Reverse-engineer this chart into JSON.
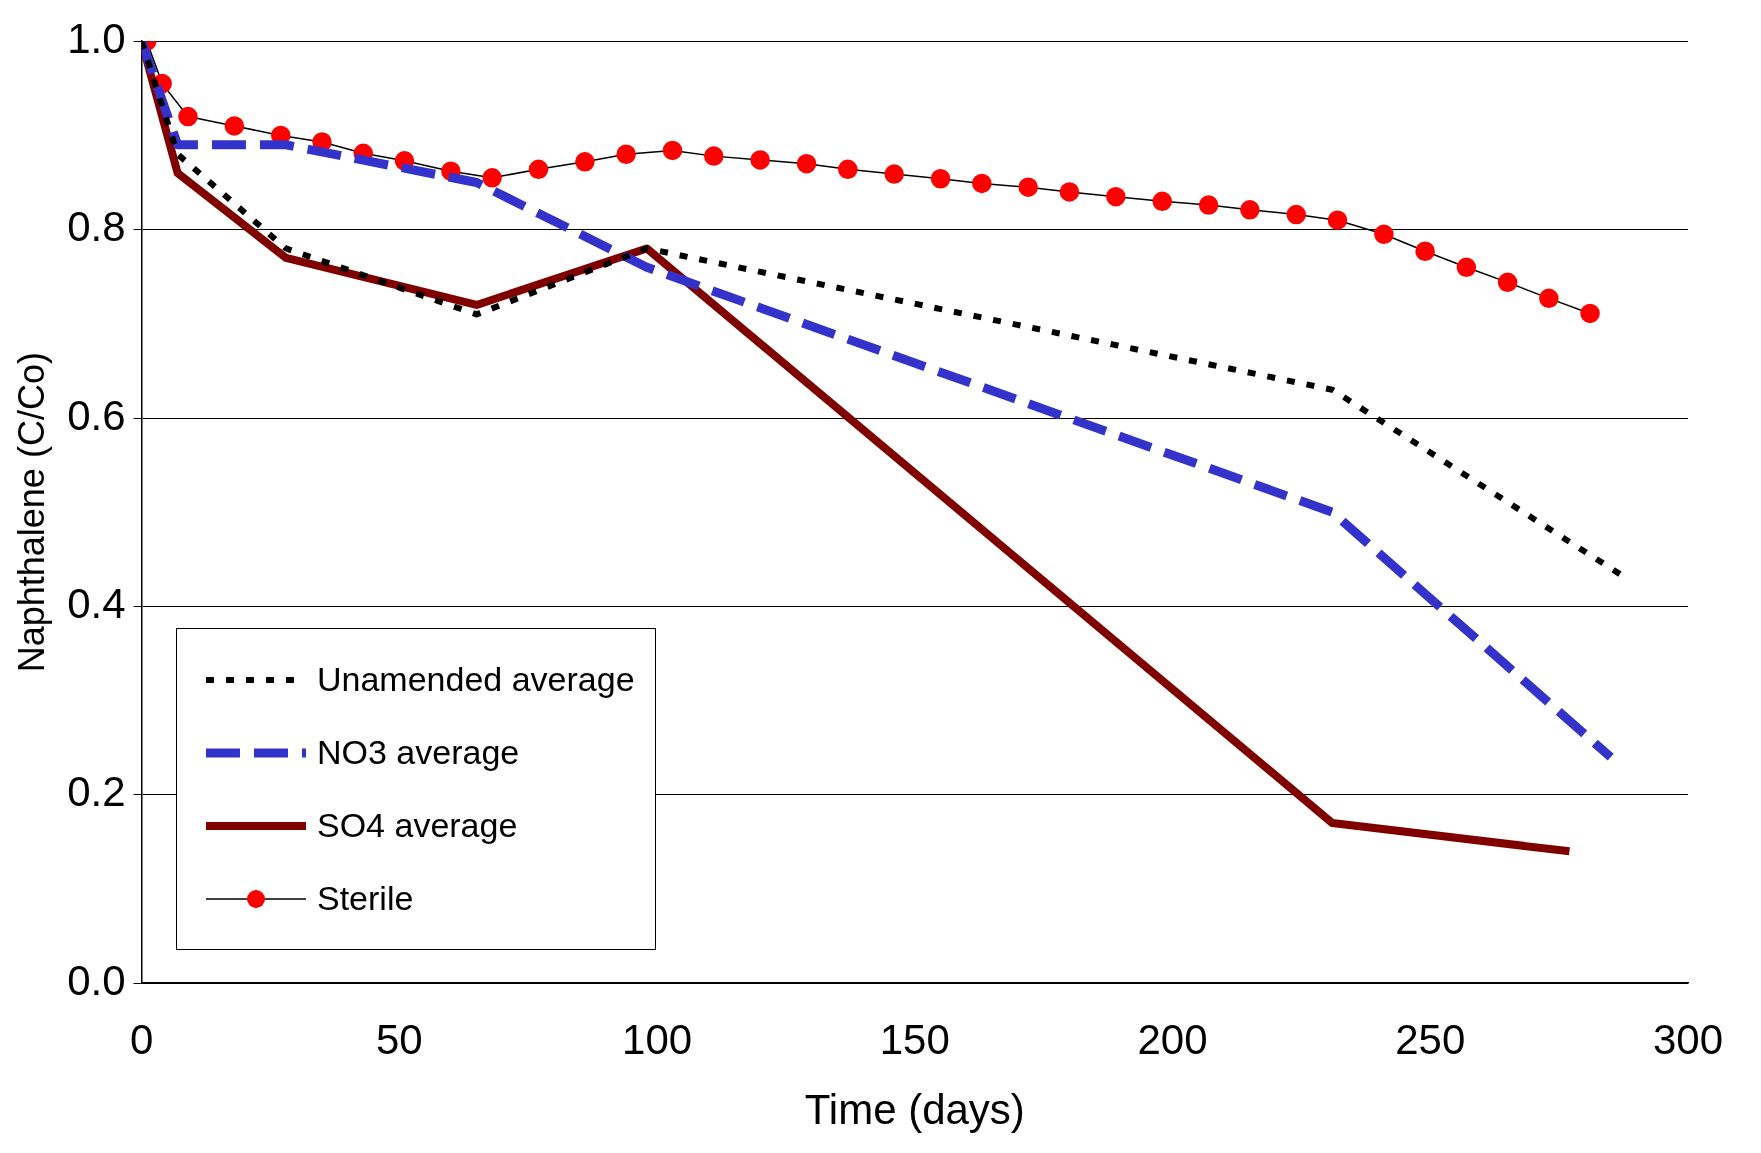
{
  "chart_data": {
    "type": "line",
    "xlabel": "Time (days)",
    "ylabel": "Naphthalene (C/Co)",
    "xlim": [
      0,
      300
    ],
    "xticks": [
      0,
      50,
      100,
      150,
      200,
      250,
      300
    ],
    "ylim": [
      0,
      1
    ],
    "yticks": [
      {
        "value": 0,
        "label": "0.0"
      },
      {
        "value": 0.2,
        "label": "0.2"
      },
      {
        "value": 0.4,
        "label": "0.4"
      },
      {
        "value": 0.6,
        "label": "0.6"
      },
      {
        "value": 0.8,
        "label": "0.8"
      },
      {
        "value": 1,
        "label": "1.0"
      }
    ],
    "grid": "y",
    "legend": "bottom left",
    "series": [
      {
        "name": "Unamended average",
        "color": "#000000",
        "line_style": "dotted",
        "marker": "none",
        "x": [
          0,
          7,
          28,
          65,
          98,
          231,
          288
        ],
        "values": [
          1.0,
          0.88,
          0.78,
          0.71,
          0.78,
          0.63,
          0.43
        ]
      },
      {
        "name": "NO3 average",
        "color": "#3333cc",
        "line_style": "dashed",
        "marker": "none",
        "x": [
          0,
          7,
          28,
          65,
          98,
          231,
          285
        ],
        "values": [
          1.0,
          0.89,
          0.89,
          0.85,
          0.76,
          0.5,
          0.24
        ]
      },
      {
        "name": "SO4 average",
        "color": "#800000",
        "line_style": "solid",
        "marker": "none",
        "x": [
          0,
          7,
          28,
          65,
          98,
          231,
          277
        ],
        "values": [
          1.0,
          0.86,
          0.77,
          0.72,
          0.78,
          0.17,
          0.14
        ]
      },
      {
        "name": "Sterile",
        "color": "#ff0000",
        "line_style": "solid",
        "marker": "circle",
        "x": [
          1,
          4,
          9,
          18,
          27,
          35,
          43,
          51,
          60,
          68,
          77,
          86,
          94,
          103,
          111,
          120,
          129,
          137,
          146,
          155,
          163,
          172,
          180,
          189,
          198,
          207,
          215,
          224,
          232,
          241,
          249,
          257,
          265,
          273,
          281
        ],
        "values": [
          1.0,
          0.955,
          0.92,
          0.91,
          0.9,
          0.893,
          0.881,
          0.873,
          0.862,
          0.855,
          0.864,
          0.872,
          0.88,
          0.884,
          0.878,
          0.874,
          0.87,
          0.864,
          0.859,
          0.854,
          0.849,
          0.845,
          0.84,
          0.835,
          0.83,
          0.826,
          0.821,
          0.816,
          0.81,
          0.795,
          0.777,
          0.76,
          0.744,
          0.727,
          0.711
        ]
      }
    ]
  }
}
